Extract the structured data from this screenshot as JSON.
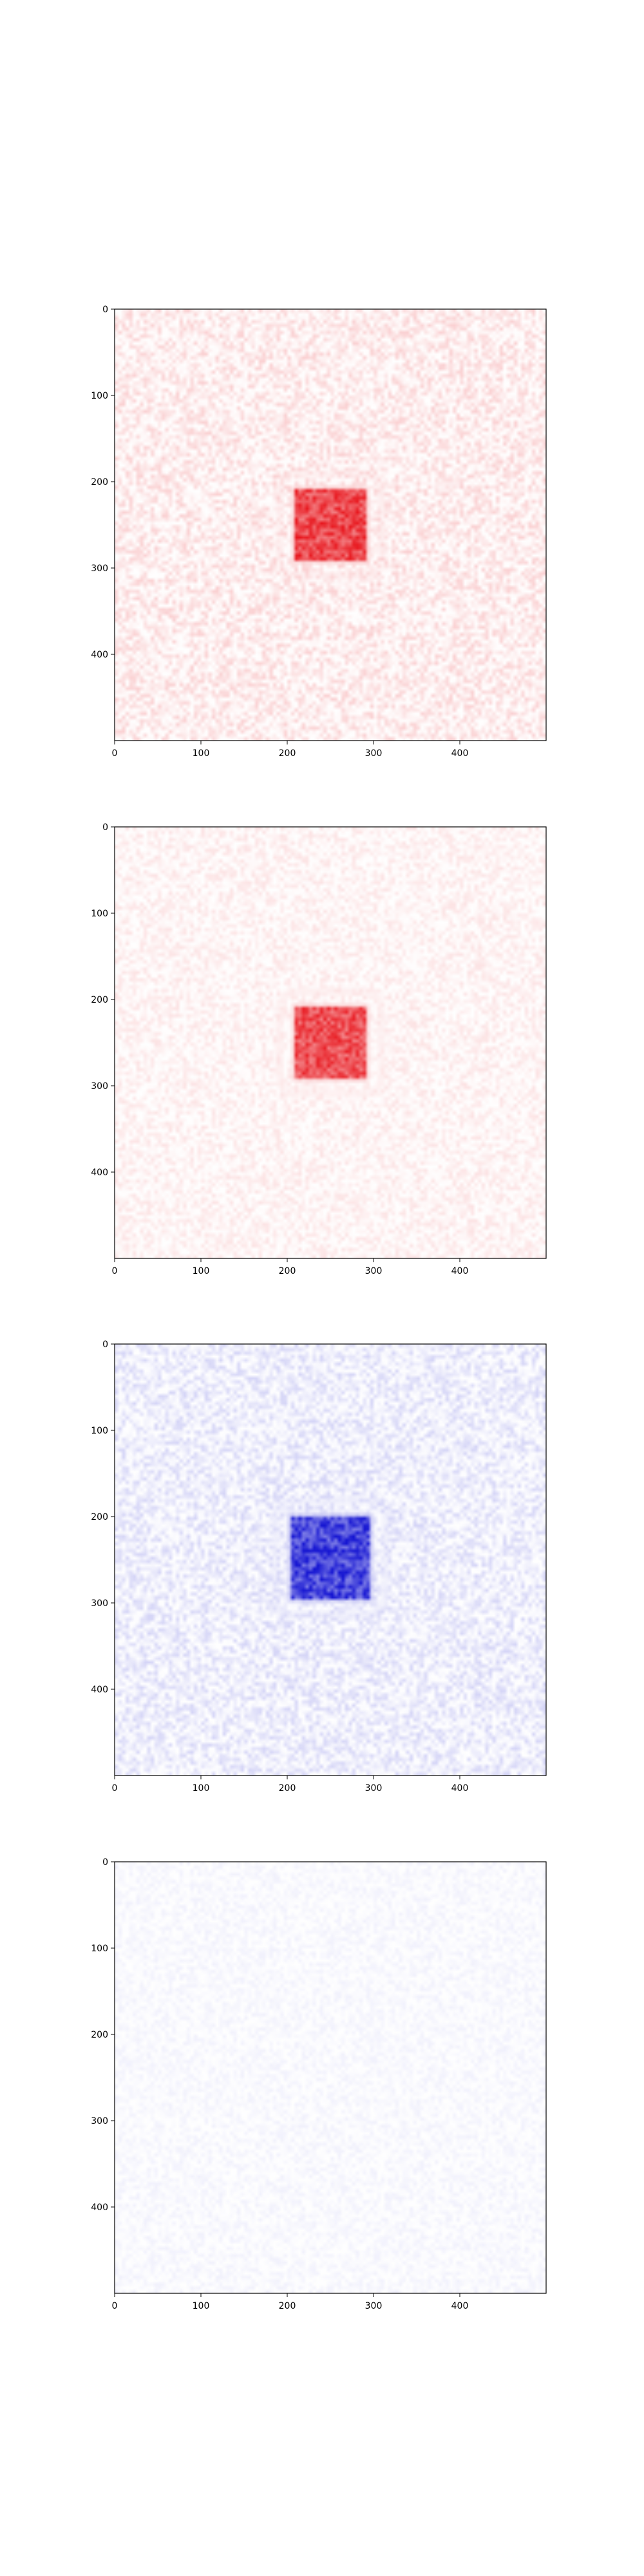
{
  "chart_data": [
    {
      "type": "heatmap",
      "title": "",
      "xlabel": "",
      "ylabel": "",
      "xlim": [
        0,
        499
      ],
      "ylim": [
        499,
        0
      ],
      "xticks": [
        0,
        100,
        200,
        300,
        400
      ],
      "yticks": [
        0,
        100,
        200,
        300,
        400
      ],
      "colormap_color": "#e8141b",
      "background_level": 0.2,
      "feature": {
        "x_range": [
          210,
          290
        ],
        "y_range": [
          210,
          290
        ],
        "peak_level": 1.0
      },
      "grid": false
    },
    {
      "type": "heatmap",
      "title": "",
      "xlabel": "",
      "ylabel": "",
      "xlim": [
        0,
        499
      ],
      "ylim": [
        499,
        0
      ],
      "xticks": [
        0,
        100,
        200,
        300,
        400
      ],
      "yticks": [
        0,
        100,
        200,
        300,
        400
      ],
      "colormap_color": "#e8141b",
      "background_level": 0.12,
      "feature": {
        "x_range": [
          210,
          290
        ],
        "y_range": [
          210,
          290
        ],
        "peak_level": 0.95
      },
      "grid": false
    },
    {
      "type": "heatmap",
      "title": "",
      "xlabel": "",
      "ylabel": "",
      "xlim": [
        0,
        499
      ],
      "ylim": [
        499,
        0
      ],
      "xticks": [
        0,
        100,
        200,
        300,
        400
      ],
      "yticks": [
        0,
        100,
        200,
        300,
        400
      ],
      "colormap_color": "#1414d2",
      "background_level": 0.18,
      "feature": {
        "x_range": [
          205,
          295
        ],
        "y_range": [
          200,
          295
        ],
        "peak_level": 1.0
      },
      "grid": false
    },
    {
      "type": "heatmap",
      "title": "",
      "xlabel": "",
      "ylabel": "",
      "xlim": [
        0,
        499
      ],
      "ylim": [
        499,
        0
      ],
      "xticks": [
        0,
        100,
        200,
        300,
        400
      ],
      "yticks": [
        0,
        100,
        200,
        300,
        400
      ],
      "colormap_color": "#1414d2",
      "background_level": 0.06,
      "feature": null,
      "grid": false
    }
  ]
}
